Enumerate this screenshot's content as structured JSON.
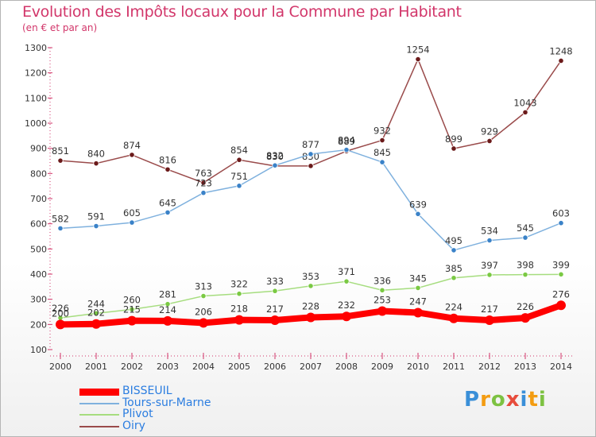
{
  "title": "Evolution des Impôts locaux pour la Commune par Habitant",
  "subtitle": "(en € et par an)",
  "logo": [
    "P",
    "r",
    "o",
    "x",
    "i",
    "t",
    "i"
  ],
  "chart_data": {
    "type": "line",
    "title": "Evolution des Impôts locaux pour la Commune par Habitant",
    "subtitle": "(en € et par an)",
    "x": [
      "2000",
      "2001",
      "2002",
      "2003",
      "2004",
      "2005",
      "2006",
      "2007",
      "2008",
      "2009",
      "2010",
      "2011",
      "2012",
      "2013",
      "2014"
    ],
    "ylim": [
      100,
      1300
    ],
    "yticks": [
      100,
      200,
      300,
      400,
      500,
      600,
      700,
      800,
      900,
      1000,
      1100,
      1200,
      1300
    ],
    "grid": false,
    "legend_position": "bottom-left",
    "series": [
      {
        "name": "BISSEUIL",
        "color": "#ff0000",
        "marker": "#ff0000",
        "labelColor": "#333333",
        "values": [
          200,
          202,
          215,
          214,
          206,
          218,
          217,
          228,
          232,
          253,
          247,
          224,
          217,
          226,
          276
        ]
      },
      {
        "name": "Tours-sur-Marne",
        "color": "#7fb1de",
        "marker": "#3a82c8",
        "labelColor": "#333333",
        "values": [
          582,
          591,
          605,
          645,
          723,
          751,
          832,
          877,
          894,
          845,
          639,
          495,
          534,
          545,
          603
        ]
      },
      {
        "name": "Plivot",
        "color": "#a6dd7f",
        "marker": "#7ac943",
        "labelColor": "#333333",
        "values": [
          226,
          244,
          260,
          281,
          313,
          322,
          333,
          353,
          371,
          336,
          345,
          385,
          397,
          398,
          399
        ]
      },
      {
        "name": "Oiry",
        "color": "#9a4b4b",
        "marker": "#6b1a1a",
        "labelColor": "#333333",
        "values": [
          851,
          840,
          874,
          816,
          763,
          854,
          830,
          830,
          889,
          932,
          1254,
          899,
          929,
          1043,
          1248
        ]
      }
    ]
  }
}
